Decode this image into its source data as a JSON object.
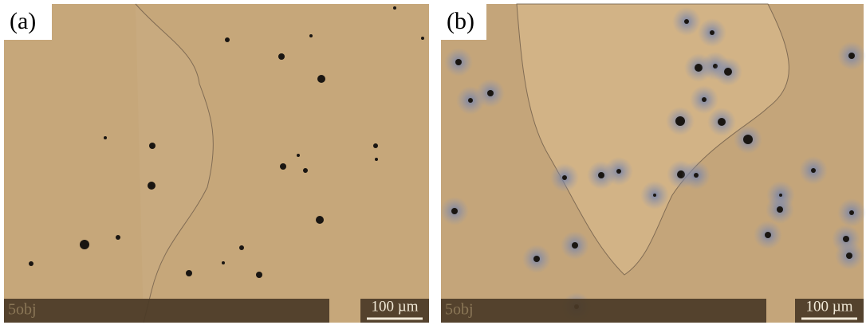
{
  "panels": [
    {
      "label": "(a)",
      "caption": "5obj",
      "scale": "100 µm"
    },
    {
      "label": "(b)",
      "caption": "5obj",
      "scale": "100 µm"
    }
  ]
}
